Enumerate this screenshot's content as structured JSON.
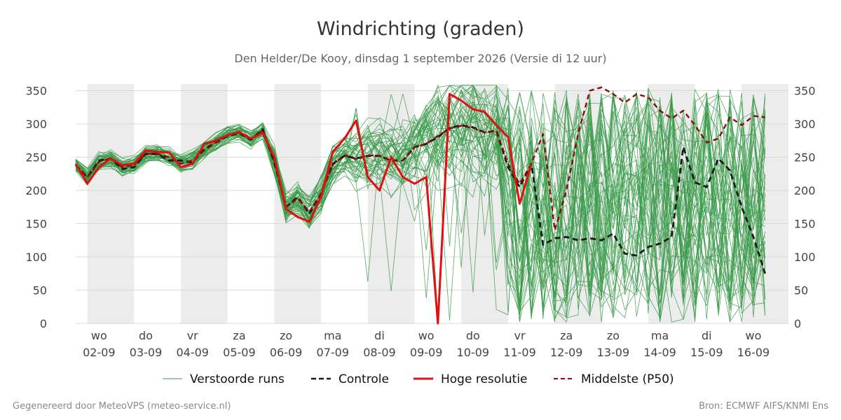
{
  "chart_data": {
    "type": "line",
    "title": "Windrichting (graden)",
    "subtitle": "Den Helder/De Kooy, dinsdag  1 september 2026 (Versie di 12 uur)",
    "ylim": [
      0,
      360
    ],
    "yticks": [
      0,
      50,
      100,
      150,
      200,
      250,
      300,
      350
    ],
    "x_domain": [
      0,
      30.5
    ],
    "x_ticks": [
      {
        "x": 1,
        "day": "wo",
        "date": "02-09"
      },
      {
        "x": 3,
        "day": "do",
        "date": "03-09"
      },
      {
        "x": 5,
        "day": "vr",
        "date": "04-09"
      },
      {
        "x": 7,
        "day": "za",
        "date": "05-09"
      },
      {
        "x": 9,
        "day": "zo",
        "date": "06-09"
      },
      {
        "x": 11,
        "day": "ma",
        "date": "07-09"
      },
      {
        "x": 13,
        "day": "di",
        "date": "08-09"
      },
      {
        "x": 15,
        "day": "wo",
        "date": "09-09"
      },
      {
        "x": 17,
        "day": "do",
        "date": "10-09"
      },
      {
        "x": 19,
        "day": "vr",
        "date": "11-09"
      },
      {
        "x": 21,
        "day": "za",
        "date": "12-09"
      },
      {
        "x": 23,
        "day": "zo",
        "date": "13-09"
      },
      {
        "x": 25,
        "day": "ma",
        "date": "14-09"
      },
      {
        "x": 27,
        "day": "di",
        "date": "15-09"
      },
      {
        "x": 29,
        "day": "wo",
        "date": "16-09"
      }
    ],
    "shaded_bands": [
      [
        0.5,
        2.5
      ],
      [
        4.5,
        6.5
      ],
      [
        8.5,
        10.5
      ],
      [
        12.5,
        14.5
      ],
      [
        16.5,
        18.5
      ],
      [
        20.5,
        22.5
      ],
      [
        24.5,
        26.5
      ],
      [
        28.5,
        30.5
      ]
    ],
    "grid": true,
    "legend": {
      "placement": "bottom",
      "entries": [
        "Verstoorde runs",
        "Controle",
        "Hoge resolutie",
        "Middelste (P50)"
      ]
    },
    "colors": {
      "ensemble": "#3a9a4a",
      "controle": "#1a1a1a",
      "hoge_resolutie": "#e01010",
      "middelste": "#8b0a0a",
      "band": "#ececec",
      "grid": "#d9d9d9"
    },
    "series": [
      {
        "name": "Hoge resolutie",
        "style": "solid-red",
        "points": [
          [
            0,
            240
          ],
          [
            0.5,
            210
          ],
          [
            1,
            235
          ],
          [
            1.5,
            248
          ],
          [
            2,
            238
          ],
          [
            2.5,
            240
          ],
          [
            3,
            260
          ],
          [
            3.5,
            258
          ],
          [
            4,
            257
          ],
          [
            4.5,
            235
          ],
          [
            5,
            240
          ],
          [
            5.5,
            270
          ],
          [
            6,
            275
          ],
          [
            6.5,
            283
          ],
          [
            7,
            288
          ],
          [
            7.5,
            278
          ],
          [
            8,
            287
          ],
          [
            8.5,
            250
          ],
          [
            9,
            172
          ],
          [
            9.5,
            160
          ],
          [
            10,
            153
          ],
          [
            10.5,
            190
          ],
          [
            11,
            258
          ],
          [
            11.5,
            278
          ],
          [
            12,
            305
          ],
          [
            12.5,
            220
          ],
          [
            13,
            200
          ],
          [
            13.5,
            250
          ],
          [
            14,
            220
          ],
          [
            14.5,
            210
          ],
          [
            15,
            220
          ],
          [
            15.5,
            0
          ],
          [
            16,
            345
          ],
          [
            16.5,
            335
          ],
          [
            17,
            322
          ],
          [
            17.5,
            318
          ],
          [
            18,
            298
          ],
          [
            18.5,
            280
          ],
          [
            19,
            180
          ],
          [
            19.5,
            240
          ]
        ]
      },
      {
        "name": "Controle",
        "style": "dashed-black",
        "points": [
          [
            0,
            238
          ],
          [
            0.5,
            220
          ],
          [
            1,
            245
          ],
          [
            1.5,
            248
          ],
          [
            2,
            232
          ],
          [
            2.5,
            235
          ],
          [
            3,
            255
          ],
          [
            3.5,
            255
          ],
          [
            4,
            245
          ],
          [
            4.5,
            245
          ],
          [
            5,
            242
          ],
          [
            5.5,
            262
          ],
          [
            6,
            272
          ],
          [
            6.5,
            282
          ],
          [
            7,
            286
          ],
          [
            7.5,
            276
          ],
          [
            8,
            292
          ],
          [
            8.5,
            242
          ],
          [
            9,
            175
          ],
          [
            9.5,
            190
          ],
          [
            10,
            165
          ],
          [
            10.5,
            195
          ],
          [
            11,
            240
          ],
          [
            11.5,
            252
          ],
          [
            12,
            248
          ],
          [
            12.5,
            252
          ],
          [
            13,
            252
          ],
          [
            13.5,
            245
          ],
          [
            14,
            245
          ],
          [
            14.5,
            265
          ],
          [
            15,
            270
          ],
          [
            15.5,
            280
          ],
          [
            16,
            294
          ],
          [
            16.5,
            298
          ],
          [
            17,
            295
          ],
          [
            17.5,
            287
          ],
          [
            18,
            290
          ],
          [
            18.5,
            235
          ],
          [
            19,
            205
          ],
          [
            19.5,
            240
          ],
          [
            20,
            118
          ],
          [
            20.5,
            128
          ],
          [
            21,
            130
          ],
          [
            21.5,
            125
          ],
          [
            22,
            128
          ],
          [
            22.5,
            125
          ],
          [
            23,
            135
          ],
          [
            23.5,
            105
          ],
          [
            24,
            102
          ],
          [
            24.5,
            115
          ],
          [
            25,
            120
          ],
          [
            25.5,
            130
          ],
          [
            26,
            265
          ],
          [
            26.5,
            212
          ],
          [
            27,
            205
          ],
          [
            27.5,
            248
          ],
          [
            28,
            230
          ],
          [
            28.5,
            175
          ],
          [
            29,
            130
          ],
          [
            29.5,
            75
          ]
        ]
      },
      {
        "name": "Middelste (P50)",
        "style": "dashed-darkred",
        "points": [
          [
            0,
            238
          ],
          [
            0.5,
            220
          ],
          [
            1,
            243
          ],
          [
            1.5,
            248
          ],
          [
            2,
            235
          ],
          [
            2.5,
            238
          ],
          [
            3,
            255
          ],
          [
            3.5,
            255
          ],
          [
            4,
            250
          ],
          [
            4.5,
            240
          ],
          [
            5,
            245
          ],
          [
            5.5,
            260
          ],
          [
            6,
            272
          ],
          [
            6.5,
            283
          ],
          [
            7,
            287
          ],
          [
            7.5,
            277
          ],
          [
            8,
            290
          ],
          [
            8.5,
            245
          ],
          [
            9,
            175
          ],
          [
            9.5,
            188
          ],
          [
            10,
            168
          ],
          [
            10.5,
            195
          ],
          [
            11,
            238
          ],
          [
            11.5,
            253
          ],
          [
            12,
            247
          ],
          [
            12.5,
            253
          ],
          [
            13,
            252
          ],
          [
            13.5,
            245
          ],
          [
            14,
            245
          ],
          [
            14.5,
            265
          ],
          [
            15,
            270
          ],
          [
            15.5,
            282
          ],
          [
            16,
            293
          ],
          [
            16.5,
            297
          ],
          [
            17,
            294
          ],
          [
            17.5,
            287
          ],
          [
            18,
            290
          ],
          [
            18.5,
            240
          ],
          [
            19,
            210
          ],
          [
            19.5,
            240
          ],
          [
            20,
            285
          ],
          [
            20.5,
            140
          ],
          [
            21,
            200
          ],
          [
            21.5,
            285
          ],
          [
            22,
            350
          ],
          [
            22.5,
            355
          ],
          [
            23,
            345
          ],
          [
            23.5,
            332
          ],
          [
            24,
            345
          ],
          [
            24.5,
            340
          ],
          [
            25,
            320
          ],
          [
            25.5,
            308
          ],
          [
            26,
            320
          ],
          [
            26.5,
            298
          ],
          [
            27,
            272
          ],
          [
            27.5,
            278
          ],
          [
            28,
            310
          ],
          [
            28.5,
            298
          ],
          [
            29,
            312
          ],
          [
            29.5,
            310
          ]
        ]
      }
    ]
  },
  "legend_labels": {
    "verstoorde": "Verstoorde runs",
    "controle": "Controle",
    "hoge": "Hoge resolutie",
    "middelste": "Middelste (P50)"
  },
  "footer": {
    "left": "Gegenereerd door MeteoVPS (meteo-service.nl)",
    "right": "Bron: ECMWF AIFS/KNMI Ens"
  }
}
